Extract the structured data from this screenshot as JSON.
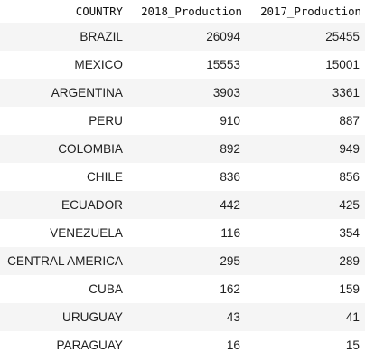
{
  "table": {
    "headers": [
      "COUNTRY",
      "2018_Production",
      "2017_Production"
    ],
    "rows": [
      [
        "BRAZIL",
        "26094",
        "25455"
      ],
      [
        "MEXICO",
        "15553",
        "15001"
      ],
      [
        "ARGENTINA",
        "3903",
        "3361"
      ],
      [
        "PERU",
        "910",
        "887"
      ],
      [
        "COLOMBIA",
        "892",
        "949"
      ],
      [
        "CHILE",
        "836",
        "856"
      ],
      [
        "ECUADOR",
        "442",
        "425"
      ],
      [
        "VENEZUELA",
        "116",
        "354"
      ],
      [
        "CENTRAL AMERICA",
        "295",
        "289"
      ],
      [
        "CUBA",
        "162",
        "159"
      ],
      [
        "URUGUAY",
        "43",
        "41"
      ],
      [
        "PARAGUAY",
        "16",
        "15"
      ]
    ]
  }
}
